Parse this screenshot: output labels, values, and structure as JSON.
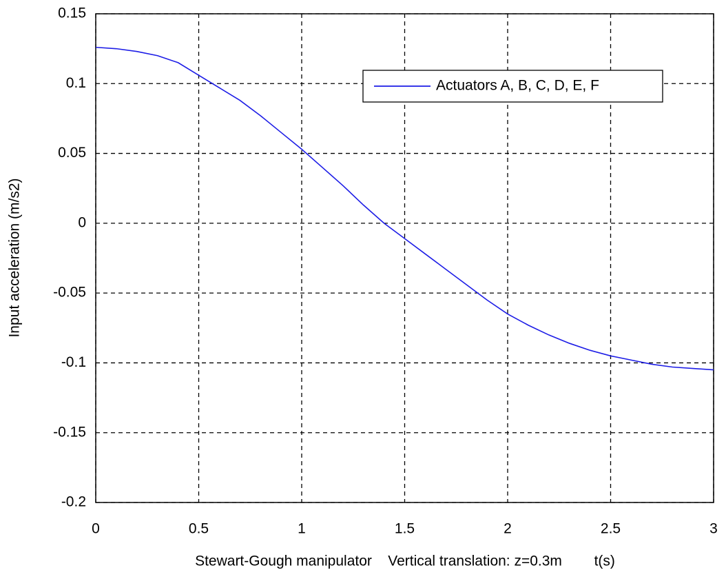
{
  "chart_data": {
    "type": "line",
    "x_label": "Stewart-Gough manipulator    Vertical translation: z=0.3m        t(s)",
    "y_label": "Input acceleration (m/s2)",
    "x": [
      0,
      0.1,
      0.2,
      0.3,
      0.4,
      0.5,
      0.6,
      0.7,
      0.8,
      0.9,
      1.0,
      1.1,
      1.2,
      1.3,
      1.4,
      1.5,
      1.6,
      1.7,
      1.8,
      1.9,
      2.0,
      2.1,
      2.2,
      2.3,
      2.4,
      2.5,
      2.6,
      2.7,
      2.8,
      2.9,
      3.0
    ],
    "series": [
      {
        "name": "Actuators A, B, C, D, E, F",
        "color": "#1c1ce6",
        "values": [
          0.126,
          0.125,
          0.123,
          0.12,
          0.115,
          0.106,
          0.097,
          0.088,
          0.077,
          0.065,
          0.053,
          0.04,
          0.027,
          0.013,
          0.0,
          -0.011,
          -0.022,
          -0.033,
          -0.044,
          -0.055,
          -0.065,
          -0.073,
          -0.08,
          -0.086,
          -0.091,
          -0.095,
          -0.098,
          -0.101,
          -0.103,
          -0.104,
          -0.105
        ]
      }
    ],
    "xlim": [
      0,
      3
    ],
    "xticks": [
      0,
      0.5,
      1,
      1.5,
      2,
      2.5,
      3
    ],
    "ylim": [
      -0.2,
      0.15
    ],
    "yticks": [
      -0.2,
      -0.15,
      -0.1,
      -0.05,
      0,
      0.05,
      0.1,
      0.15
    ],
    "grid": true,
    "legend": "upper right"
  }
}
